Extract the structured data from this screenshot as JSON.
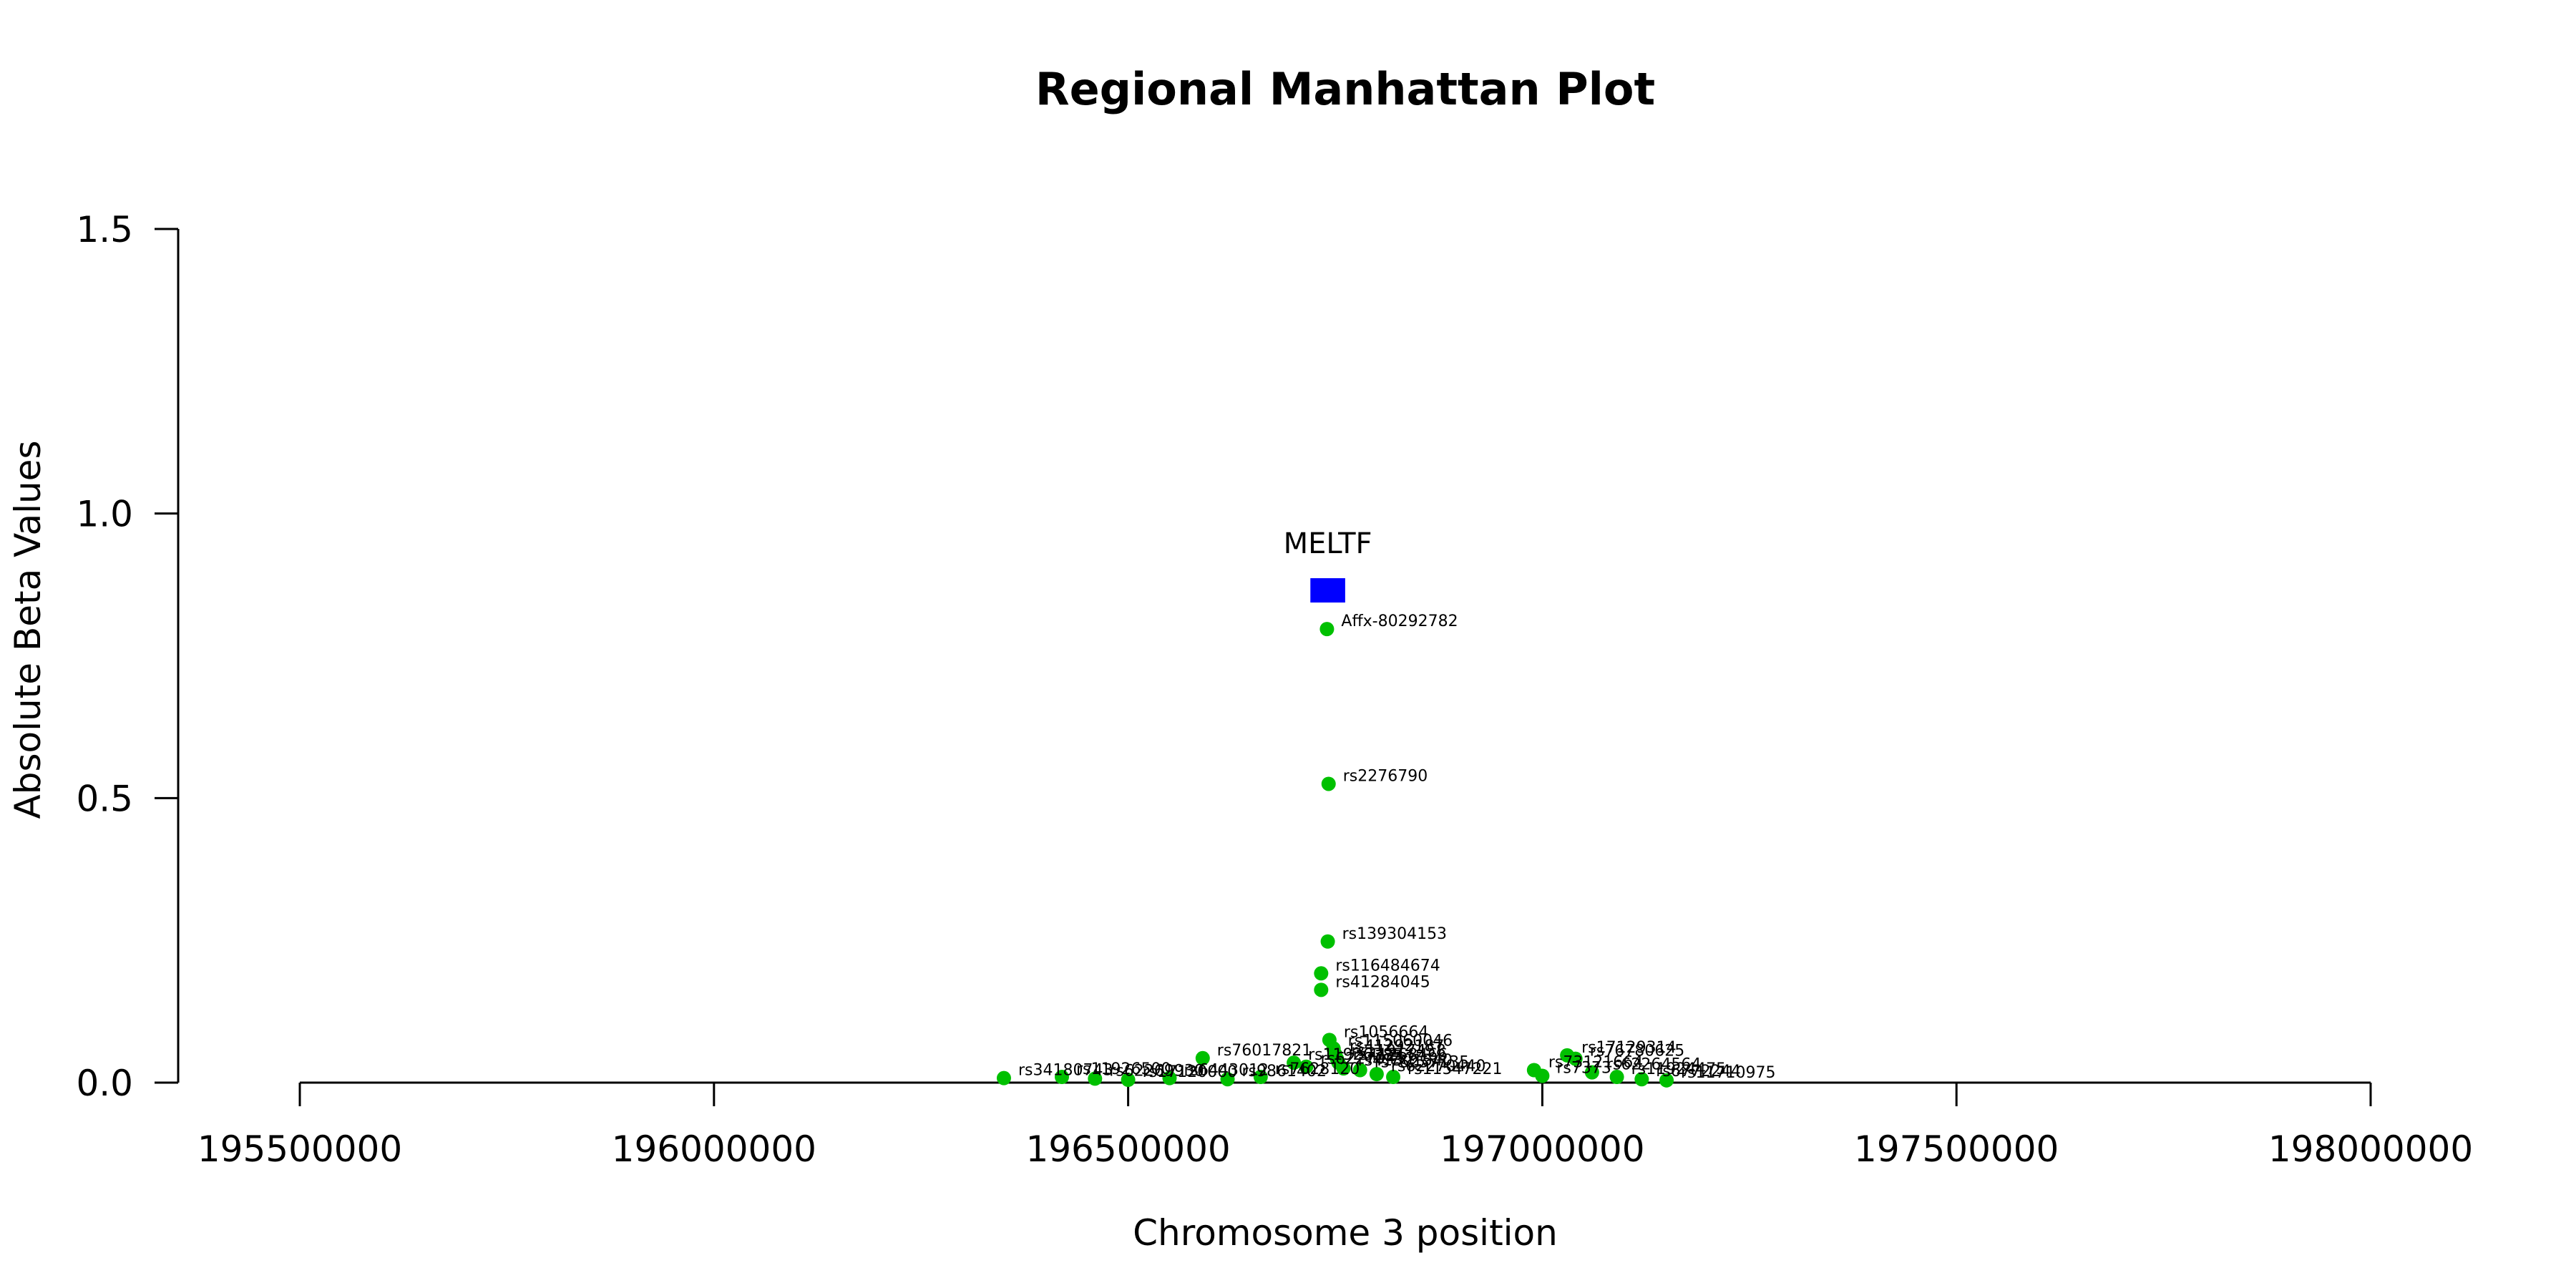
{
  "colors": {
    "snp": "#00c000",
    "gene": "#0000ff",
    "axis": "#000000"
  },
  "chart_data": {
    "type": "scatter",
    "title": "Regional Manhattan Plot",
    "xlabel": "Chromosome 3 position",
    "ylabel": "Absolute Beta Values",
    "xlim": [
      195500000,
      198000000
    ],
    "ylim": [
      0,
      1.5
    ],
    "xticks": [
      195500000,
      196000000,
      196500000,
      197000000,
      197500000,
      198000000
    ],
    "xtick_labels": [
      "195500000",
      "196000000",
      "196500000",
      "197000000",
      "197500000",
      "198000000"
    ],
    "yticks": [
      0,
      0.5,
      1,
      1.5
    ],
    "ytick_labels": [
      "0.0",
      "0.5",
      "1.0",
      "1.5"
    ],
    "gene": {
      "name": "MELTF",
      "start": 196720000,
      "end": 196762000,
      "y": 0.865
    },
    "points": [
      {
        "x": 196740000,
        "y": 0.797,
        "label": "Affx-80292782"
      },
      {
        "x": 196742000,
        "y": 0.525,
        "label": "rs2276790"
      },
      {
        "x": 196741000,
        "y": 0.248,
        "label": "rs139304153"
      },
      {
        "x": 196733000,
        "y": 0.192,
        "label": "rs116484674"
      },
      {
        "x": 196733000,
        "y": 0.163,
        "label": "rs41284045"
      },
      {
        "x": 196743000,
        "y": 0.075,
        "label": "rs1056664"
      },
      {
        "x": 196748000,
        "y": 0.06,
        "label": "rs115060046"
      },
      {
        "x": 196750000,
        "y": 0.05,
        "label": "rs41292187"
      },
      {
        "x": 196752000,
        "y": 0.042,
        "label": "rs11917458"
      },
      {
        "x": 196754000,
        "y": 0.035,
        "label": "rs41268466"
      },
      {
        "x": 196590000,
        "y": 0.043,
        "label": "rs76017821"
      },
      {
        "x": 196700000,
        "y": 0.035,
        "label": "rs11926385"
      },
      {
        "x": 196715000,
        "y": 0.028,
        "label": "rs62270452"
      },
      {
        "x": 196760000,
        "y": 0.025,
        "label": "rs41301540"
      },
      {
        "x": 196780000,
        "y": 0.022,
        "label": "rs76257135"
      },
      {
        "x": 196800000,
        "y": 0.015,
        "label": "rs62270440"
      },
      {
        "x": 196820000,
        "y": 0.01,
        "label": "rs11547221"
      },
      {
        "x": 197030000,
        "y": 0.048,
        "label": "rs17129314"
      },
      {
        "x": 197040000,
        "y": 0.042,
        "label": "rs76780625"
      },
      {
        "x": 196990000,
        "y": 0.022,
        "label": "rs73121664"
      },
      {
        "x": 197000000,
        "y": 0.012,
        "label": "rs7373"
      },
      {
        "x": 197060000,
        "y": 0.018,
        "label": "rs62264564"
      },
      {
        "x": 197090000,
        "y": 0.01,
        "label": "rs11924475"
      },
      {
        "x": 197120000,
        "y": 0.006,
        "label": "rs6772244"
      },
      {
        "x": 197150000,
        "y": 0.004,
        "label": "rs11710975"
      },
      {
        "x": 196350000,
        "y": 0.008,
        "label": "rs34180743"
      },
      {
        "x": 196420000,
        "y": 0.01,
        "label": "rs11926500"
      },
      {
        "x": 196460000,
        "y": 0.007,
        "label": "rs62269930"
      },
      {
        "x": 196500000,
        "y": 0.005,
        "label": "rs17120000"
      },
      {
        "x": 196550000,
        "y": 0.008,
        "label": "rs6443012"
      },
      {
        "x": 196620000,
        "y": 0.006,
        "label": "rs9861402"
      },
      {
        "x": 196660000,
        "y": 0.01,
        "label": "rs7628120"
      }
    ]
  }
}
